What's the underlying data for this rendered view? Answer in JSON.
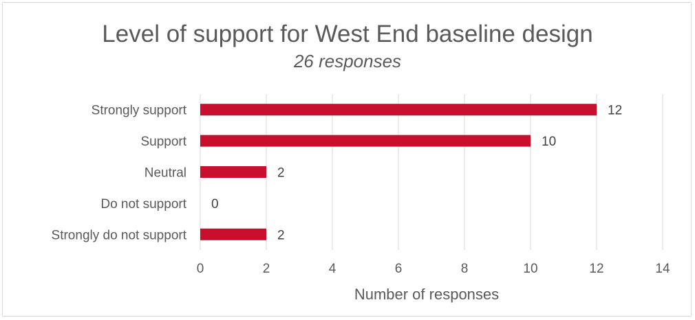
{
  "chart_data": {
    "type": "bar",
    "orientation": "horizontal",
    "title": "Level of support for West End baseline design",
    "subtitle": "26 responses",
    "xlabel": "Number of responses",
    "ylabel": "",
    "categories": [
      "Strongly support",
      "Support",
      "Neutral",
      "Do not support",
      "Strongly do not support"
    ],
    "values": [
      12,
      10,
      2,
      0,
      2
    ],
    "xlim": [
      0,
      14
    ],
    "xticks": [
      0,
      2,
      4,
      6,
      8,
      10,
      12,
      14
    ],
    "grid": "vertical",
    "legend": "none",
    "bar_color": "#c8102e",
    "grid_color": "#d9d9d9"
  }
}
